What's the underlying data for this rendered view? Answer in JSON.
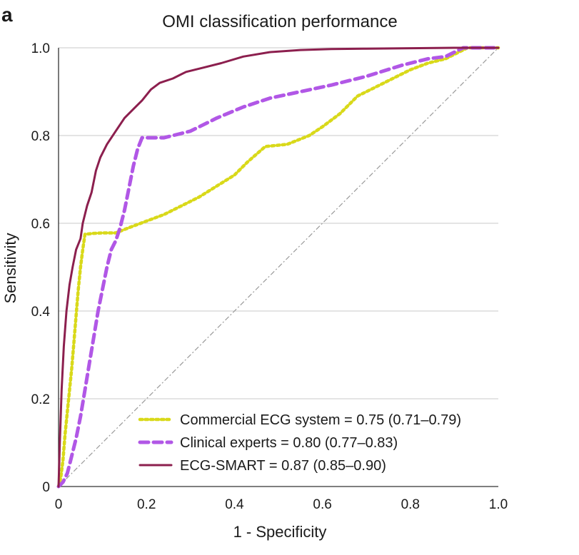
{
  "panel_label": "a",
  "chart_data": {
    "type": "line",
    "title": "OMI classification performance",
    "xlabel": "1 - Specificity",
    "ylabel": "Sensitivity",
    "xlim": [
      0,
      1.0
    ],
    "ylim": [
      0,
      1.0
    ],
    "x_ticks": [
      0,
      0.2,
      0.4,
      0.6,
      0.8,
      1.0
    ],
    "x_tick_labels": [
      "0",
      "0.2",
      "0.4",
      "0.6",
      "0.8",
      "1.0"
    ],
    "y_ticks": [
      0,
      0.2,
      0.4,
      0.6,
      0.8,
      1.0
    ],
    "y_tick_labels": [
      "0",
      "0.2",
      "0.4",
      "0.6",
      "0.8",
      "1.0"
    ],
    "grid": "horizontal",
    "legend_position": "bottom-right",
    "series": [
      {
        "name": "Commercial ECG system = 0.75 (0.71–0.79)",
        "color": "#d9d91a",
        "style": "dotted",
        "points": [
          [
            0,
            0
          ],
          [
            0.005,
            0.02
          ],
          [
            0.01,
            0.06
          ],
          [
            0.015,
            0.12
          ],
          [
            0.02,
            0.17
          ],
          [
            0.025,
            0.22
          ],
          [
            0.03,
            0.27
          ],
          [
            0.035,
            0.33
          ],
          [
            0.04,
            0.39
          ],
          [
            0.045,
            0.45
          ],
          [
            0.05,
            0.5
          ],
          [
            0.055,
            0.54
          ],
          [
            0.06,
            0.575
          ],
          [
            0.08,
            0.577
          ],
          [
            0.1,
            0.578
          ],
          [
            0.13,
            0.578
          ],
          [
            0.16,
            0.59
          ],
          [
            0.2,
            0.605
          ],
          [
            0.24,
            0.62
          ],
          [
            0.28,
            0.64
          ],
          [
            0.32,
            0.66
          ],
          [
            0.36,
            0.685
          ],
          [
            0.4,
            0.71
          ],
          [
            0.43,
            0.74
          ],
          [
            0.47,
            0.775
          ],
          [
            0.52,
            0.78
          ],
          [
            0.57,
            0.8
          ],
          [
            0.6,
            0.82
          ],
          [
            0.64,
            0.85
          ],
          [
            0.68,
            0.89
          ],
          [
            0.72,
            0.91
          ],
          [
            0.76,
            0.93
          ],
          [
            0.8,
            0.95
          ],
          [
            0.84,
            0.965
          ],
          [
            0.88,
            0.975
          ],
          [
            0.9,
            0.985
          ],
          [
            0.93,
            1.0
          ],
          [
            1.0,
            1.0
          ]
        ]
      },
      {
        "name": "Clinical experts = 0.80 (0.77–0.83)",
        "color": "#b157e6",
        "style": "dashed",
        "points": [
          [
            0,
            0
          ],
          [
            0.01,
            0.01
          ],
          [
            0.02,
            0.03
          ],
          [
            0.03,
            0.07
          ],
          [
            0.04,
            0.11
          ],
          [
            0.05,
            0.16
          ],
          [
            0.06,
            0.22
          ],
          [
            0.07,
            0.28
          ],
          [
            0.08,
            0.34
          ],
          [
            0.09,
            0.4
          ],
          [
            0.1,
            0.45
          ],
          [
            0.11,
            0.5
          ],
          [
            0.12,
            0.54
          ],
          [
            0.13,
            0.56
          ],
          [
            0.14,
            0.59
          ],
          [
            0.15,
            0.63
          ],
          [
            0.16,
            0.68
          ],
          [
            0.17,
            0.73
          ],
          [
            0.18,
            0.77
          ],
          [
            0.19,
            0.795
          ],
          [
            0.24,
            0.795
          ],
          [
            0.3,
            0.81
          ],
          [
            0.36,
            0.84
          ],
          [
            0.42,
            0.865
          ],
          [
            0.48,
            0.885
          ],
          [
            0.55,
            0.9
          ],
          [
            0.62,
            0.915
          ],
          [
            0.7,
            0.935
          ],
          [
            0.78,
            0.96
          ],
          [
            0.84,
            0.975
          ],
          [
            0.88,
            0.98
          ],
          [
            0.9,
            0.99
          ],
          [
            0.92,
            1.0
          ],
          [
            1.0,
            1.0
          ]
        ]
      },
      {
        "name": "ECG-SMART = 0.87 (0.85–0.90)",
        "color": "#8c1f4e",
        "style": "solid",
        "points": [
          [
            0,
            0
          ],
          [
            0.003,
            0.1
          ],
          [
            0.007,
            0.22
          ],
          [
            0.012,
            0.32
          ],
          [
            0.018,
            0.4
          ],
          [
            0.025,
            0.46
          ],
          [
            0.032,
            0.5
          ],
          [
            0.04,
            0.54
          ],
          [
            0.05,
            0.565
          ],
          [
            0.055,
            0.6
          ],
          [
            0.065,
            0.64
          ],
          [
            0.075,
            0.67
          ],
          [
            0.085,
            0.72
          ],
          [
            0.095,
            0.75
          ],
          [
            0.11,
            0.78
          ],
          [
            0.13,
            0.81
          ],
          [
            0.15,
            0.84
          ],
          [
            0.17,
            0.86
          ],
          [
            0.19,
            0.88
          ],
          [
            0.21,
            0.905
          ],
          [
            0.23,
            0.92
          ],
          [
            0.26,
            0.93
          ],
          [
            0.29,
            0.945
          ],
          [
            0.33,
            0.955
          ],
          [
            0.37,
            0.965
          ],
          [
            0.42,
            0.98
          ],
          [
            0.48,
            0.99
          ],
          [
            0.55,
            0.995
          ],
          [
            0.62,
            0.997
          ],
          [
            0.7,
            0.998
          ],
          [
            0.8,
            0.999
          ],
          [
            0.9,
            1.0
          ],
          [
            1.0,
            1.0
          ]
        ]
      }
    ],
    "reference_line": {
      "points": [
        [
          0,
          0
        ],
        [
          1.0,
          1.0
        ]
      ],
      "color": "#9a9a9a",
      "style": "dash-dot"
    }
  }
}
